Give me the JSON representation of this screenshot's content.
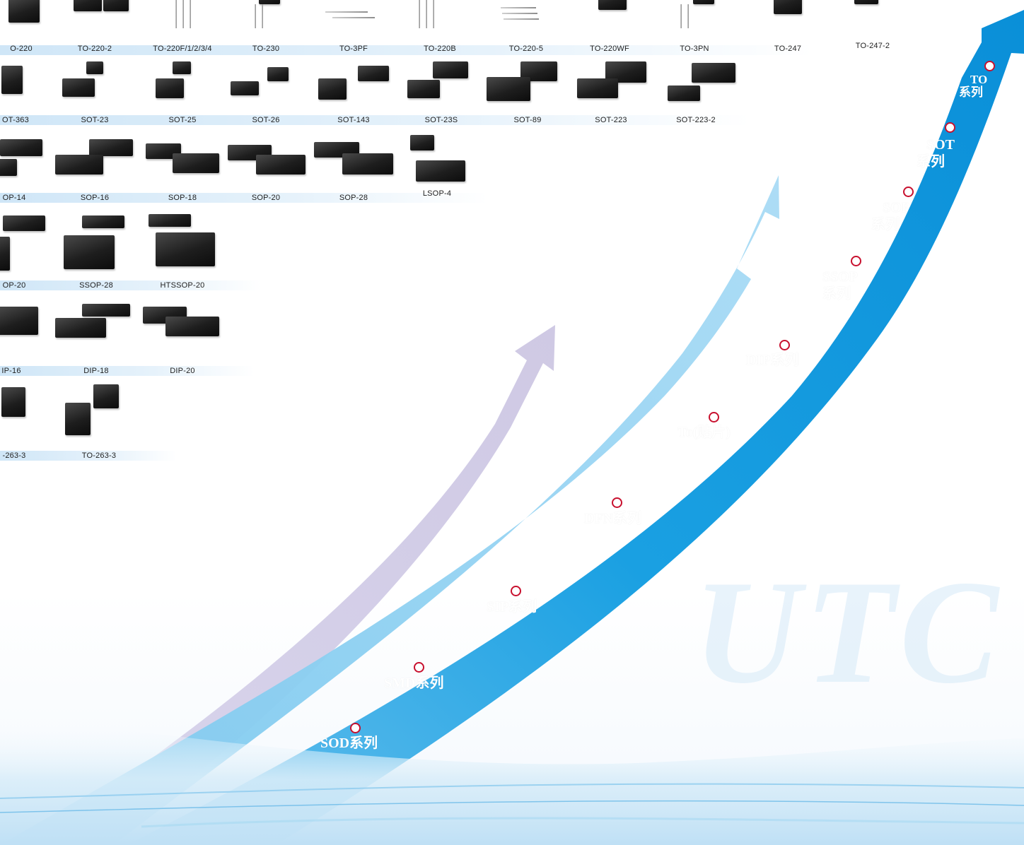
{
  "rows": [
    {
      "packages": [
        "O-220",
        "TO-220-2",
        "TO-220F/1/2/3/4",
        "TO-230",
        "TO-3PF",
        "TO-220B",
        "TO-220-5",
        "TO-220WF",
        "TO-3PN",
        "TO-247",
        "TO-247-2"
      ]
    },
    {
      "packages": [
        "OT-363",
        "SOT-23",
        "SOT-25",
        "SOT-26",
        "SOT-143",
        "SOT-23S",
        "SOT-89",
        "SOT-223",
        "SOT-223-2"
      ]
    },
    {
      "packages": [
        "OP-14",
        "SOP-16",
        "SOP-18",
        "SOP-20",
        "SOP-28",
        "LSOP-4"
      ]
    },
    {
      "packages": [
        "OP-20",
        "SSOP-28",
        "HTSSOP-20"
      ]
    },
    {
      "packages": [
        "IP-16",
        "DIP-18",
        "DIP-20"
      ]
    },
    {
      "packages": [
        "-263-3",
        "TO-263-3"
      ]
    }
  ],
  "series": [
    {
      "line1": "SOD系列",
      "line2": ""
    },
    {
      "line1": "SMD系列",
      "line2": ""
    },
    {
      "line1": "SIP系列",
      "line2": ""
    },
    {
      "line1": "DFN系列",
      "line2": ""
    },
    {
      "line1": "To(贴片)",
      "line2": ""
    },
    {
      "line1": "DIP系列",
      "line2": ""
    },
    {
      "line1": "SSOP",
      "line2": "系列"
    },
    {
      "line1": "SOP",
      "line2": "系列"
    },
    {
      "line1": "SOT",
      "line2": "系列"
    },
    {
      "line1": "TO",
      "line2": "系列"
    }
  ],
  "watermark": "UTC",
  "colors": {
    "arrow_primary": "#0a93dc",
    "arrow_secondary": "#9fd6f3",
    "arrow_tertiary": "#d2cde6",
    "dot_ring": "#c8102e",
    "label_band": "#cfe6f7"
  }
}
